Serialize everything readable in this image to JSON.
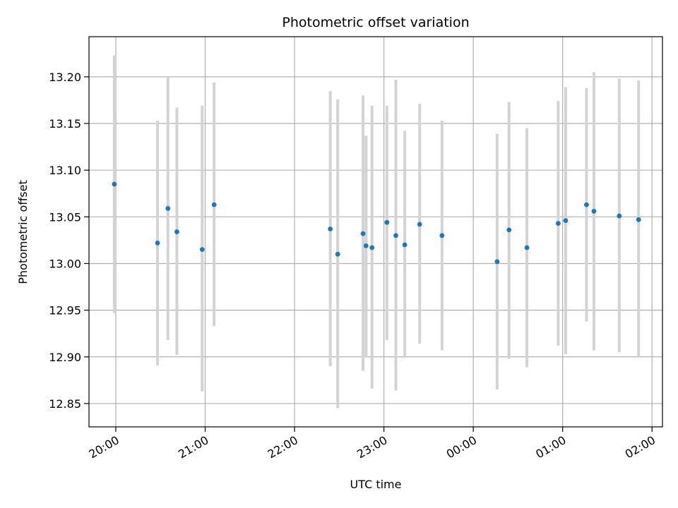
{
  "chart_data": {
    "type": "scatter",
    "title": "Photometric offset variation",
    "xlabel": "UTC time",
    "ylabel": "Photometric offset",
    "x_axis": "time",
    "x_ticks": [
      "20:00",
      "21:00",
      "22:00",
      "23:00",
      "00:00",
      "01:00",
      "02:00"
    ],
    "y_ticks": [
      "12.85",
      "12.90",
      "12.95",
      "13.00",
      "13.05",
      "13.10",
      "13.15",
      "13.20"
    ],
    "ylim": [
      12.825,
      13.243
    ],
    "xlim": [
      "19:42",
      "02:07"
    ],
    "grid": true,
    "colors": {
      "points": "#1f77b4",
      "errorbars": "#d3d3d3",
      "grid": "#b0b0b0"
    },
    "points": [
      {
        "x": "19:59",
        "y": 13.085,
        "lo": 12.947,
        "hi": 13.223
      },
      {
        "x": "20:28",
        "y": 13.022,
        "lo": 12.891,
        "hi": 13.153
      },
      {
        "x": "20:35",
        "y": 13.059,
        "lo": 12.918,
        "hi": 13.2
      },
      {
        "x": "20:41",
        "y": 13.034,
        "lo": 12.902,
        "hi": 13.167
      },
      {
        "x": "20:58",
        "y": 13.015,
        "lo": 12.863,
        "hi": 13.169
      },
      {
        "x": "21:06",
        "y": 13.063,
        "lo": 12.933,
        "hi": 13.194
      },
      {
        "x": "22:24",
        "y": 13.037,
        "lo": 12.89,
        "hi": 13.185
      },
      {
        "x": "22:29",
        "y": 13.01,
        "lo": 12.845,
        "hi": 13.176
      },
      {
        "x": "22:46",
        "y": 13.032,
        "lo": 12.885,
        "hi": 13.18
      },
      {
        "x": "22:48",
        "y": 13.019,
        "lo": 12.9,
        "hi": 13.137
      },
      {
        "x": "22:52",
        "y": 13.017,
        "lo": 12.866,
        "hi": 13.169
      },
      {
        "x": "23:02",
        "y": 13.044,
        "lo": 12.918,
        "hi": 13.169
      },
      {
        "x": "23:08",
        "y": 13.03,
        "lo": 12.864,
        "hi": 13.197
      },
      {
        "x": "23:14",
        "y": 13.02,
        "lo": 12.899,
        "hi": 13.142
      },
      {
        "x": "23:24",
        "y": 13.042,
        "lo": 12.914,
        "hi": 13.171
      },
      {
        "x": "23:39",
        "y": 13.03,
        "lo": 12.907,
        "hi": 13.153
      },
      {
        "x": "00:16",
        "y": 13.002,
        "lo": 12.865,
        "hi": 13.139
      },
      {
        "x": "00:24",
        "y": 13.036,
        "lo": 12.898,
        "hi": 13.173
      },
      {
        "x": "00:36",
        "y": 13.017,
        "lo": 12.889,
        "hi": 13.145
      },
      {
        "x": "00:57",
        "y": 13.043,
        "lo": 12.912,
        "hi": 13.174
      },
      {
        "x": "01:02",
        "y": 13.046,
        "lo": 12.903,
        "hi": 13.189
      },
      {
        "x": "01:16",
        "y": 13.063,
        "lo": 12.938,
        "hi": 13.188
      },
      {
        "x": "01:21",
        "y": 13.056,
        "lo": 12.907,
        "hi": 13.205
      },
      {
        "x": "01:38",
        "y": 13.051,
        "lo": 12.905,
        "hi": 13.198
      },
      {
        "x": "01:51",
        "y": 13.047,
        "lo": 12.899,
        "hi": 13.196
      }
    ]
  }
}
